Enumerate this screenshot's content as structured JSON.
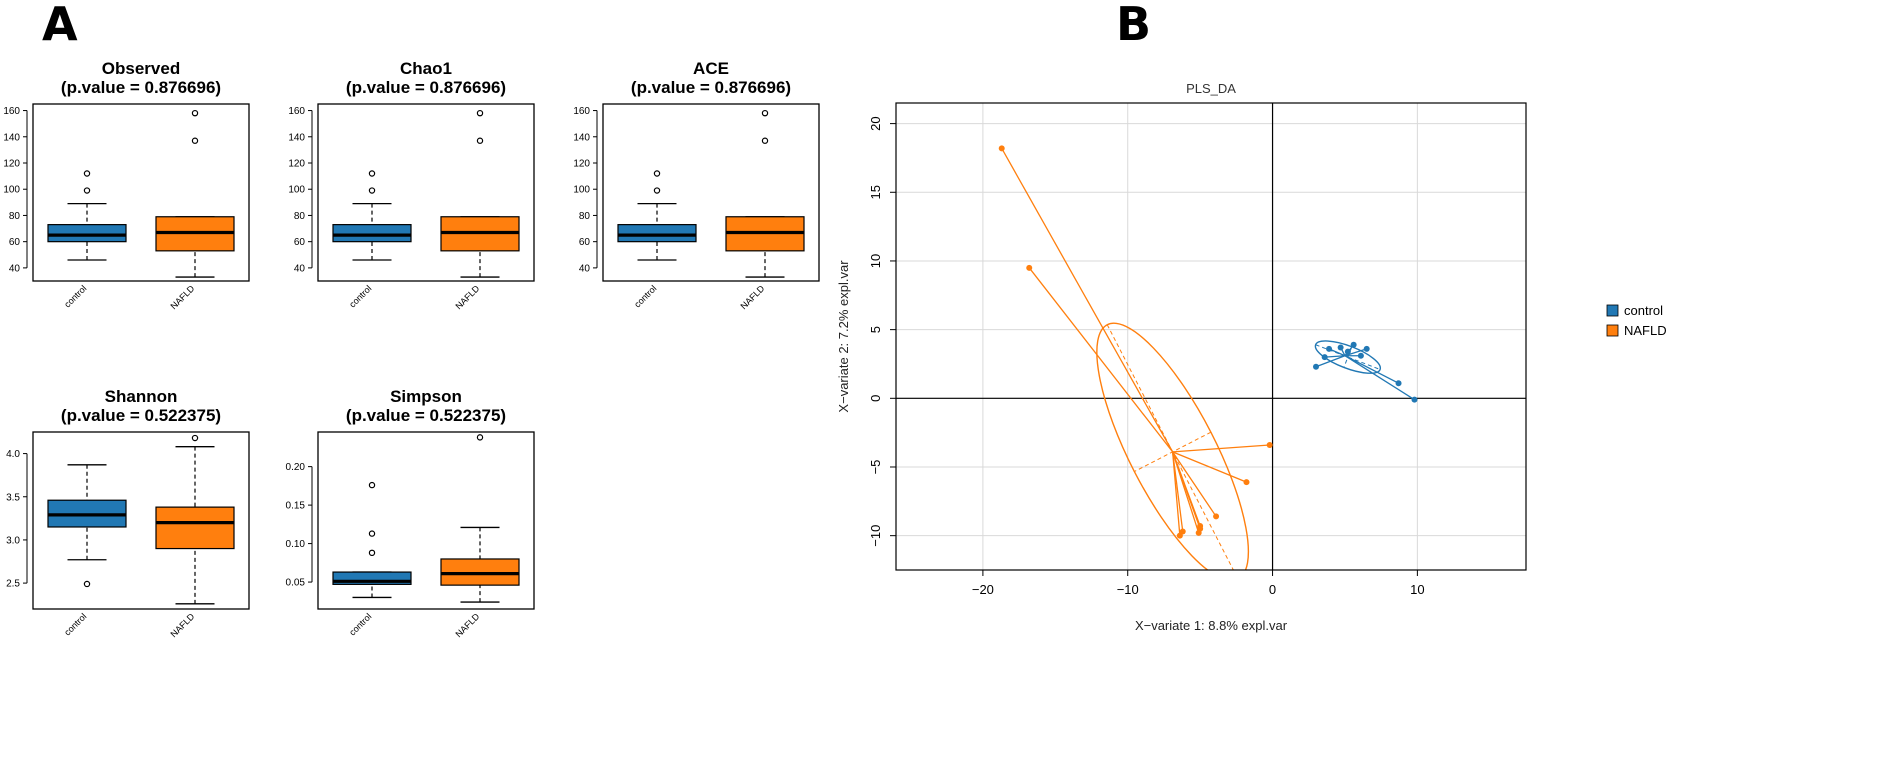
{
  "panels": {
    "a": "A",
    "b": "B"
  },
  "colors": {
    "control": "#2178b4",
    "nafld": "#ff7f0e",
    "grid": "#d9d9d9",
    "axis": "#000000"
  },
  "chart_data": [
    {
      "type": "box",
      "title": "Observed",
      "pvalue": "(p.value = 0.876696)",
      "categories": [
        "control",
        "NAFLD"
      ],
      "ylim": [
        30,
        165
      ],
      "yticks": [
        40,
        60,
        80,
        100,
        120,
        140,
        160
      ],
      "tick_labels": [
        "40",
        "60",
        "80",
        "100",
        "120",
        "140",
        "160"
      ],
      "boxes": [
        {
          "name": "control",
          "min": 46,
          "q1": 60,
          "median": 65,
          "q3": 73,
          "max": 89,
          "outliers": [
            99,
            112
          ]
        },
        {
          "name": "NAFLD",
          "min": 33,
          "q1": 53,
          "median": 67,
          "q3": 79,
          "max": 79,
          "outliers": [
            137,
            158
          ]
        }
      ]
    },
    {
      "type": "box",
      "title": "Chao1",
      "pvalue": "(p.value = 0.876696)",
      "categories": [
        "control",
        "NAFLD"
      ],
      "ylim": [
        30,
        165
      ],
      "yticks": [
        40,
        60,
        80,
        100,
        120,
        140,
        160
      ],
      "tick_labels": [
        "40",
        "60",
        "80",
        "100",
        "120",
        "140",
        "160"
      ],
      "boxes": [
        {
          "name": "control",
          "min": 46,
          "q1": 60,
          "median": 65,
          "q3": 73,
          "max": 89,
          "outliers": [
            99,
            112
          ]
        },
        {
          "name": "NAFLD",
          "min": 33,
          "q1": 53,
          "median": 67,
          "q3": 79,
          "max": 79,
          "outliers": [
            137,
            158
          ]
        }
      ]
    },
    {
      "type": "box",
      "title": "ACE",
      "pvalue": "(p.value = 0.876696)",
      "categories": [
        "control",
        "NAFLD"
      ],
      "ylim": [
        30,
        165
      ],
      "yticks": [
        40,
        60,
        80,
        100,
        120,
        140,
        160
      ],
      "tick_labels": [
        "40",
        "60",
        "80",
        "100",
        "120",
        "140",
        "160"
      ],
      "boxes": [
        {
          "name": "control",
          "min": 46,
          "q1": 60,
          "median": 65,
          "q3": 73,
          "max": 89,
          "outliers": [
            99,
            112
          ]
        },
        {
          "name": "NAFLD",
          "min": 33,
          "q1": 53,
          "median": 67,
          "q3": 79,
          "max": 79,
          "outliers": [
            137,
            158
          ]
        }
      ]
    },
    {
      "type": "box",
      "title": "Shannon",
      "pvalue": "(p.value = 0.522375)",
      "categories": [
        "control",
        "NAFLD"
      ],
      "ylim": [
        2.2,
        4.25
      ],
      "yticks": [
        2.5,
        3.0,
        3.5,
        4.0
      ],
      "tick_labels": [
        "2.5",
        "3.0",
        "3.5",
        "4.0"
      ],
      "boxes": [
        {
          "name": "control",
          "min": 2.77,
          "q1": 3.15,
          "median": 3.29,
          "q3": 3.46,
          "max": 3.87,
          "outliers": [
            2.49
          ]
        },
        {
          "name": "NAFLD",
          "min": 2.26,
          "q1": 2.9,
          "median": 3.2,
          "q3": 3.38,
          "max": 4.08,
          "outliers": [
            4.18
          ]
        }
      ]
    },
    {
      "type": "box",
      "title": "Simpson",
      "pvalue": "(p.value = 0.522375)",
      "categories": [
        "control",
        "NAFLD"
      ],
      "ylim": [
        0.015,
        0.245
      ],
      "yticks": [
        0.05,
        0.1,
        0.15,
        0.2
      ],
      "tick_labels": [
        "0.05",
        "0.10",
        "0.15",
        "0.20"
      ],
      "boxes": [
        {
          "name": "control",
          "min": 0.03,
          "q1": 0.047,
          "median": 0.051,
          "q3": 0.063,
          "max": 0.063,
          "outliers": [
            0.088,
            0.113,
            0.176
          ]
        },
        {
          "name": "NAFLD",
          "min": 0.024,
          "q1": 0.046,
          "median": 0.061,
          "q3": 0.08,
          "max": 0.121,
          "outliers": [
            0.238
          ]
        }
      ]
    },
    {
      "type": "scatter",
      "title": "PLS_DA",
      "xlabel": "X−variate 1: 8.8% expl.var",
      "ylabel": "X−variate 2: 7.2% expl.var",
      "xlim": [
        -26,
        17.5
      ],
      "ylim": [
        -12.5,
        21.5
      ],
      "xticks": [
        -20,
        -10,
        0,
        10
      ],
      "x_tick_labels": [
        "−20",
        "−10",
        "0",
        "10"
      ],
      "yticks": [
        -10,
        -5,
        0,
        5,
        10,
        15,
        20
      ],
      "y_tick_labels": [
        "−10",
        "−5",
        "0",
        "5",
        "10",
        "15",
        "20"
      ],
      "grid": true,
      "legend": "right",
      "series": [
        {
          "name": "control",
          "centroid": [
            5.0,
            3.1
          ],
          "points": [
            [
              3.0,
              2.3
            ],
            [
              3.6,
              3.0
            ],
            [
              3.9,
              3.6
            ],
            [
              4.7,
              3.7
            ],
            [
              5.2,
              3.4
            ],
            [
              5.6,
              3.9
            ],
            [
              6.1,
              3.1
            ],
            [
              6.5,
              3.6
            ],
            [
              8.7,
              1.1
            ],
            [
              9.8,
              -0.1
            ]
          ],
          "ellipse": {
            "center": [
              5.2,
              3.0
            ],
            "semi_major": 2.4,
            "semi_minor": 0.8,
            "angle_deg": -22
          }
        },
        {
          "name": "NAFLD",
          "centroid": [
            -6.9,
            -3.9
          ],
          "points": [
            [
              -18.7,
              18.2
            ],
            [
              -16.8,
              9.5
            ],
            [
              -0.2,
              -3.4
            ],
            [
              -1.8,
              -6.1
            ],
            [
              -3.9,
              -8.6
            ],
            [
              -5.0,
              -9.3
            ],
            [
              -5.0,
              -9.5
            ],
            [
              -5.1,
              -9.8
            ],
            [
              -6.4,
              -10.0
            ],
            [
              -6.2,
              -9.7
            ]
          ],
          "ellipse": {
            "center": [
              -6.9,
              -3.9
            ],
            "semi_major": 10.3,
            "semi_minor": 3.0,
            "angle_deg": -64
          }
        }
      ]
    }
  ]
}
